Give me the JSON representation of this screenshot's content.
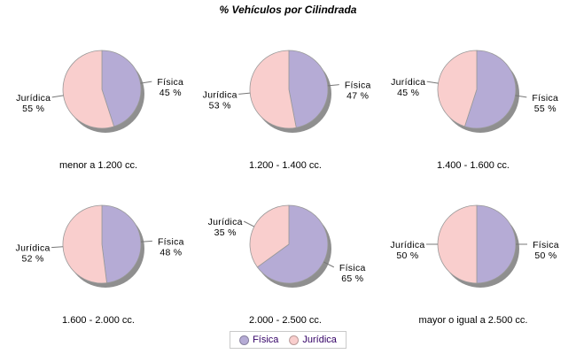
{
  "title": "% Vehículos por Cilindrada",
  "unit": "%",
  "series_colors": [
    "#B5ABD5",
    "#F9CECD"
  ],
  "colors": {
    "fisica_purple": "#B5ABD5",
    "juridica_pink": "#F9CECD",
    "slice_border": "#999999",
    "shadow": "#8F8F8F",
    "leader_line": "#777777",
    "label_text": "#000000",
    "legend_text": "#330066",
    "legend_border": "#C9C9C9",
    "background": "#FFFFFF"
  },
  "legend": {
    "items": [
      {
        "label": "Física"
      },
      {
        "label": "Jurídica"
      }
    ]
  },
  "chart_data": [
    {
      "type": "pie",
      "title": "menor a 1.200 cc.",
      "categories": [
        "Física",
        "Jurídica"
      ],
      "values": [
        45,
        55
      ],
      "legend": "bottom-shared"
    },
    {
      "type": "pie",
      "title": "1.200 - 1.400 cc.",
      "categories": [
        "Física",
        "Jurídica"
      ],
      "values": [
        47,
        53
      ]
    },
    {
      "type": "pie",
      "title": "1.400 - 1.600 cc.",
      "categories": [
        "Física",
        "Jurídica"
      ],
      "values": [
        55,
        45
      ]
    },
    {
      "type": "pie",
      "title": "1.600 - 2.000 cc.",
      "categories": [
        "Física",
        "Jurídica"
      ],
      "values": [
        48,
        52
      ]
    },
    {
      "type": "pie",
      "title": "2.000 - 2.500 cc.",
      "categories": [
        "Física",
        "Jurídica"
      ],
      "values": [
        65,
        35
      ]
    },
    {
      "type": "pie",
      "title": "mayor o igual a 2.500 cc.",
      "categories": [
        "Física",
        "Jurídica"
      ],
      "values": [
        50,
        50
      ]
    }
  ]
}
